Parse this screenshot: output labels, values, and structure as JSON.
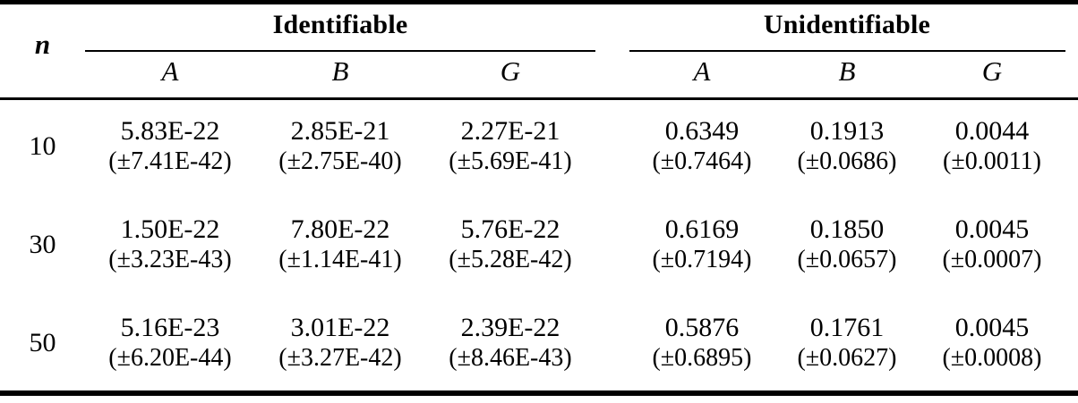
{
  "table": {
    "n_header": "n",
    "groups": [
      {
        "label": "Identifiable",
        "columns": [
          "A",
          "B",
          "G"
        ]
      },
      {
        "label": "Unidentifiable",
        "columns": [
          "A",
          "B",
          "G"
        ]
      }
    ],
    "rows": [
      {
        "n": "10",
        "cells": [
          {
            "value": "5.83E-22",
            "std": "(±7.41E-42)"
          },
          {
            "value": "2.85E-21",
            "std": "(±2.75E-40)"
          },
          {
            "value": "2.27E-21",
            "std": "(±5.69E-41)"
          },
          {
            "value": "0.6349",
            "std": "(±0.7464)"
          },
          {
            "value": "0.1913",
            "std": "(±0.0686)"
          },
          {
            "value": "0.0044",
            "std": "(±0.0011)"
          }
        ]
      },
      {
        "n": "30",
        "cells": [
          {
            "value": "1.50E-22",
            "std": "(±3.23E-43)"
          },
          {
            "value": "7.80E-22",
            "std": "(±1.14E-41)"
          },
          {
            "value": "5.76E-22",
            "std": "(±5.28E-42)"
          },
          {
            "value": "0.6169",
            "std": "(±0.7194)"
          },
          {
            "value": "0.1850",
            "std": "(±0.0657)"
          },
          {
            "value": "0.0045",
            "std": "(±0.0007)"
          }
        ]
      },
      {
        "n": "50",
        "cells": [
          {
            "value": "5.16E-23",
            "std": "(±6.20E-44)"
          },
          {
            "value": "3.01E-22",
            "std": "(±3.27E-42)"
          },
          {
            "value": "2.39E-22",
            "std": "(±8.46E-43)"
          },
          {
            "value": "0.5876",
            "std": "(±0.6895)"
          },
          {
            "value": "0.1761",
            "std": "(±0.0627)"
          },
          {
            "value": "0.0045",
            "std": "(±0.0008)"
          }
        ]
      }
    ],
    "colors": {
      "text": "#000000",
      "rule": "#000000",
      "background": "#ffffff"
    }
  }
}
